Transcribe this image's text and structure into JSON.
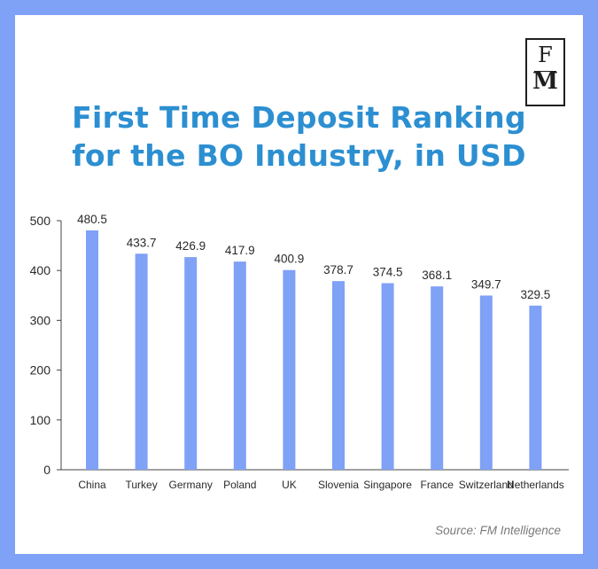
{
  "logo": {
    "line1": "F",
    "line2": "M"
  },
  "source": "Source: FM Intelligence",
  "colors": {
    "background": "#7fa1f6",
    "bar": "#7fa1f6",
    "title": "#2c8fd1",
    "axis": "#444444"
  },
  "chart_data": {
    "type": "bar",
    "title": [
      "First Time Deposit Ranking",
      "for the BO Industry, in USD"
    ],
    "categories": [
      "China",
      "Turkey",
      "Germany",
      "Poland",
      "UK",
      "Slovenia",
      "Singapore",
      "France",
      "Switzerland",
      "Netherlands"
    ],
    "values": [
      480.5,
      433.7,
      426.9,
      417.9,
      400.9,
      378.7,
      374.5,
      368.1,
      349.7,
      329.5
    ],
    "value_labels": [
      "480.5",
      "433.7",
      "426.9",
      "417.9",
      "400.9",
      "378.7",
      "374.5",
      "368.1",
      "349.7",
      "329.5"
    ],
    "yticks": [
      "0",
      "100",
      "200",
      "300",
      "400",
      "500"
    ],
    "ylim": [
      0,
      500
    ],
    "xlabel": "",
    "ylabel": "",
    "grid": false
  }
}
